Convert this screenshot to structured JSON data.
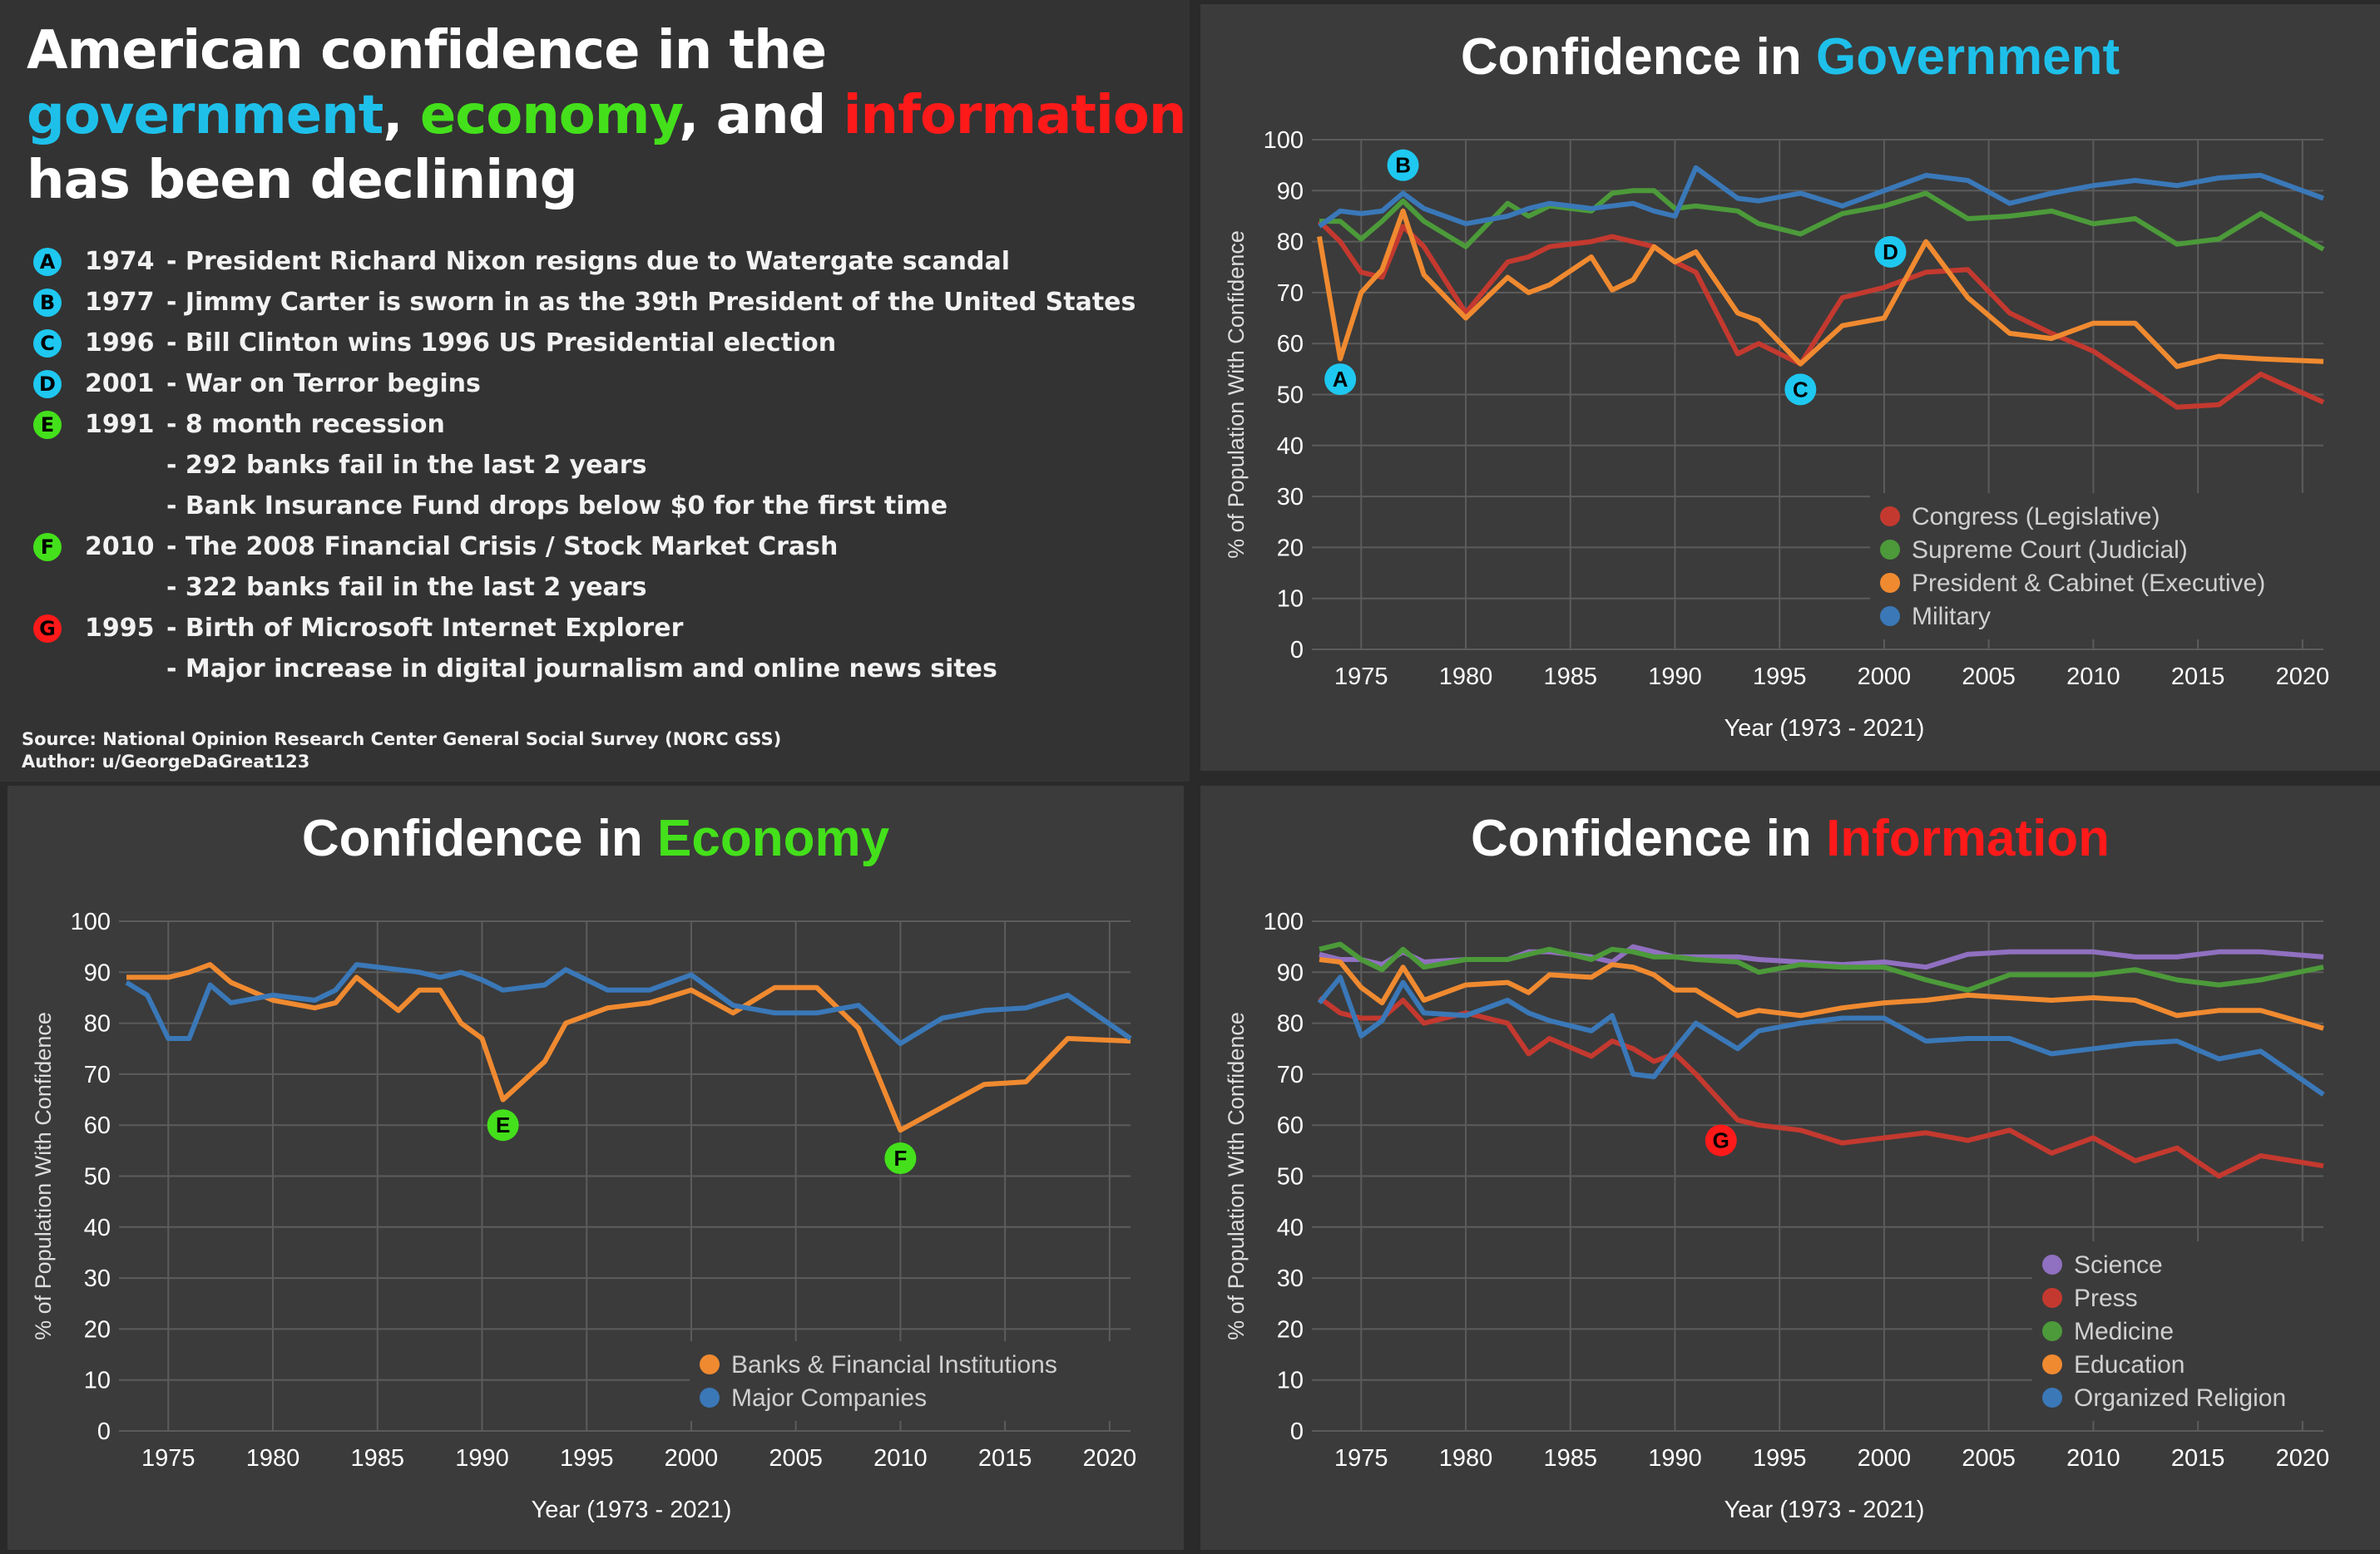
{
  "headline": {
    "line1": "American confidence in the",
    "gov": "government",
    "sep1": ", ",
    "eco": "economy",
    "sep2": ", and ",
    "inf": "information",
    "line3": "has been declining"
  },
  "events": [
    {
      "badge": "A",
      "color": "#1ec8f0",
      "year": "1974",
      "text": "- President Richard Nixon resigns due to Watergate scandal"
    },
    {
      "badge": "B",
      "color": "#1ec8f0",
      "year": "1977",
      "text": "- Jimmy Carter is sworn in as the 39th President of the United States"
    },
    {
      "badge": "C",
      "color": "#1ec8f0",
      "year": "1996",
      "text": "- Bill Clinton wins 1996 US Presidential election"
    },
    {
      "badge": "D",
      "color": "#1ec8f0",
      "year": "2001",
      "text": "- War on Terror begins"
    },
    {
      "badge": "E",
      "color": "#44e01b",
      "year": "1991",
      "text": "- 8 month recession"
    },
    {
      "badge": "",
      "color": "",
      "year": "",
      "text": "- 292 banks fail in the last 2 years"
    },
    {
      "badge": "",
      "color": "",
      "year": "",
      "text": "- Bank Insurance Fund drops below $0 for the first time"
    },
    {
      "badge": "F",
      "color": "#44e01b",
      "year": "2010",
      "text": "- The 2008 Financial Crisis / Stock Market Crash"
    },
    {
      "badge": "",
      "color": "",
      "year": "",
      "text": "- 322 banks fail in the last 2 years"
    },
    {
      "badge": "G",
      "color": "#ff1a1a",
      "year": "1995",
      "text": "- Birth of Microsoft Internet Explorer"
    },
    {
      "badge": "",
      "color": "",
      "year": "",
      "text": "- Major increase in digital journalism and online news sites"
    }
  ],
  "source": "Source: National Opinion Research Center General Social Survey (NORC GSS)",
  "author": "Author: u/GeorgeDaGreat123",
  "chart_data": [
    {
      "id": "gov",
      "type": "line",
      "title_prefix": "Confidence in ",
      "title_accent": "Government",
      "accent_color": "#1ec0ea",
      "xlabel": "Year (1973 - 2021)",
      "ylabel": "% of Population With Confidence",
      "xlim": [
        1973,
        2021
      ],
      "ylim": [
        0,
        100
      ],
      "xticks": [
        1975,
        1980,
        1985,
        1990,
        1995,
        2000,
        2005,
        2010,
        2015,
        2020
      ],
      "yticks": [
        0,
        10,
        20,
        30,
        40,
        50,
        60,
        70,
        80,
        90,
        100
      ],
      "grid": true,
      "legend": "bottom-right",
      "x": [
        1973,
        1974,
        1975,
        1976,
        1977,
        1978,
        1980,
        1982,
        1983,
        1984,
        1986,
        1987,
        1988,
        1989,
        1990,
        1991,
        1993,
        1994,
        1996,
        1998,
        2000,
        2002,
        2004,
        2006,
        2008,
        2010,
        2012,
        2014,
        2016,
        2018,
        2021
      ],
      "series": [
        {
          "name": "Congress (Legislative)",
          "color": "#c4392f",
          "values": [
            84,
            80,
            74,
            73,
            83,
            79,
            66,
            76,
            77,
            79,
            80,
            81,
            80,
            79,
            76,
            74,
            58,
            60,
            56,
            69,
            71,
            74,
            74.5,
            66,
            62,
            58.5,
            53,
            47.5,
            48,
            54,
            48.5
          ]
        },
        {
          "name": "Supreme Court (Judicial)",
          "color": "#4c9a3a",
          "values": [
            84,
            84,
            80.5,
            84,
            88,
            84,
            79,
            87.5,
            85,
            87,
            86,
            89.5,
            90,
            90,
            86.5,
            87,
            86,
            83.5,
            81.5,
            85.5,
            87,
            89.5,
            84.5,
            85,
            86,
            83.5,
            84.5,
            79.5,
            80.5,
            85.5,
            78.5
          ]
        },
        {
          "name": "President & Cabinet (Executive)",
          "color": "#f08a30",
          "values": [
            81,
            57,
            70,
            74.5,
            86,
            73.5,
            65,
            73,
            70,
            71.5,
            77,
            70.5,
            72.5,
            79,
            76,
            78,
            66,
            64.5,
            56,
            63.5,
            65,
            80,
            69,
            62,
            61,
            64,
            64,
            55.5,
            57.5,
            57,
            56.5
          ]
        },
        {
          "name": "Military",
          "color": "#3a78b8",
          "values": [
            83,
            86,
            85.5,
            86,
            89.5,
            86.5,
            83.5,
            85,
            86.5,
            87.5,
            86.5,
            87,
            87.5,
            86,
            85,
            94.5,
            88.5,
            88,
            89.5,
            87,
            90,
            93,
            92,
            87.5,
            89.5,
            91,
            92,
            91,
            92.5,
            93,
            88.5
          ]
        }
      ],
      "annotations": [
        {
          "label": "A",
          "x": 1974,
          "y": 53,
          "color": "#1ec8f0"
        },
        {
          "label": "B",
          "x": 1977,
          "y": 95,
          "color": "#1ec8f0"
        },
        {
          "label": "C",
          "x": 1996,
          "y": 51,
          "color": "#1ec8f0"
        },
        {
          "label": "D",
          "x": 2000.3,
          "y": 78,
          "color": "#1ec8f0"
        }
      ]
    },
    {
      "id": "eco",
      "type": "line",
      "title_prefix": "Confidence in ",
      "title_accent": "Economy",
      "accent_color": "#44e01b",
      "xlabel": "Year (1973 - 2021)",
      "ylabel": "% of Population With Confidence",
      "xlim": [
        1973,
        2021
      ],
      "ylim": [
        0,
        100
      ],
      "xticks": [
        1975,
        1980,
        1985,
        1990,
        1995,
        2000,
        2005,
        2010,
        2015,
        2020
      ],
      "yticks": [
        0,
        10,
        20,
        30,
        40,
        50,
        60,
        70,
        80,
        90,
        100
      ],
      "grid": true,
      "legend": "bottom-right",
      "x": [
        1973,
        1974,
        1975,
        1976,
        1977,
        1978,
        1980,
        1982,
        1983,
        1984,
        1986,
        1987,
        1988,
        1989,
        1990,
        1991,
        1993,
        1994,
        1996,
        1998,
        2000,
        2002,
        2004,
        2006,
        2008,
        2010,
        2012,
        2014,
        2016,
        2018,
        2021
      ],
      "series": [
        {
          "name": "Banks & Financial Institutions",
          "color": "#f08a30",
          "values": [
            89,
            89,
            89,
            90,
            91.5,
            88,
            84.5,
            83,
            84,
            89,
            82.5,
            86.5,
            86.5,
            80,
            77,
            65,
            72.5,
            80,
            83,
            84,
            86.5,
            82,
            87,
            87,
            79,
            59,
            63.5,
            68,
            68.5,
            77,
            76.5
          ]
        },
        {
          "name": "Major Companies",
          "color": "#3a78b8",
          "values": [
            88,
            85.5,
            77,
            77,
            87.5,
            84,
            85.5,
            84.5,
            86.5,
            91.5,
            90.5,
            90,
            89,
            90,
            88.5,
            86.5,
            87.5,
            90.5,
            86.5,
            86.5,
            89.5,
            83.5,
            82,
            82,
            83.5,
            76,
            81,
            82.5,
            83,
            85.5,
            77
          ]
        }
      ],
      "annotations": [
        {
          "label": "E",
          "x": 1991,
          "y": 60,
          "color": "#44e01b"
        },
        {
          "label": "F",
          "x": 2010,
          "y": 53.5,
          "color": "#44e01b"
        }
      ]
    },
    {
      "id": "inf",
      "type": "line",
      "title_prefix": "Confidence in ",
      "title_accent": "Information",
      "accent_color": "#ff1a1a",
      "xlabel": "Year (1973 - 2021)",
      "ylabel": "% of Population With Confidence",
      "xlim": [
        1973,
        2021
      ],
      "ylim": [
        0,
        100
      ],
      "xticks": [
        1975,
        1980,
        1985,
        1990,
        1995,
        2000,
        2005,
        2010,
        2015,
        2020
      ],
      "yticks": [
        0,
        10,
        20,
        30,
        40,
        50,
        60,
        70,
        80,
        90,
        100
      ],
      "grid": true,
      "legend": "bottom-right",
      "x": [
        1973,
        1974,
        1975,
        1976,
        1977,
        1978,
        1980,
        1982,
        1983,
        1984,
        1986,
        1987,
        1988,
        1989,
        1990,
        1991,
        1993,
        1994,
        1996,
        1998,
        2000,
        2002,
        2004,
        2006,
        2008,
        2010,
        2012,
        2014,
        2016,
        2018,
        2021
      ],
      "series": [
        {
          "name": "Science",
          "color": "#9070c0",
          "values": [
            93.5,
            92.5,
            92.5,
            91.5,
            94,
            92,
            92.5,
            92.5,
            94,
            94,
            93,
            92,
            95,
            94,
            93,
            93,
            93,
            92.5,
            92,
            91.5,
            92,
            91,
            93.5,
            94,
            94,
            94,
            93,
            93,
            94,
            94,
            93
          ]
        },
        {
          "name": "Press",
          "color": "#c4392f",
          "values": [
            85,
            82,
            81,
            81,
            84.5,
            80,
            82,
            80,
            74,
            77,
            73.5,
            76.5,
            75,
            72.5,
            74,
            70,
            61,
            60,
            59,
            56.5,
            57.5,
            58.5,
            57,
            59,
            54.5,
            57.5,
            53,
            55.5,
            50,
            54,
            52
          ]
        },
        {
          "name": "Medicine",
          "color": "#4c9a3a",
          "values": [
            94.5,
            95.5,
            92.5,
            90.5,
            94.5,
            91,
            92.5,
            92.5,
            93.5,
            94.5,
            92.5,
            94.5,
            94,
            93,
            93,
            92.5,
            92,
            90,
            91.5,
            91,
            91,
            88.5,
            86.5,
            89.5,
            89.5,
            89.5,
            90.5,
            88.5,
            87.5,
            88.5,
            91
          ]
        },
        {
          "name": "Education",
          "color": "#f08a30",
          "values": [
            92.5,
            92,
            87,
            84,
            91,
            84.5,
            87.5,
            88,
            86,
            89.5,
            89,
            91.5,
            91,
            89.5,
            86.5,
            86.5,
            81.5,
            82.5,
            81.5,
            83,
            84,
            84.5,
            85.5,
            85,
            84.5,
            85,
            84.5,
            81.5,
            82.5,
            82.5,
            79
          ]
        },
        {
          "name": "Organized Religion",
          "color": "#3a78b8",
          "values": [
            84,
            89,
            77.5,
            80.5,
            88,
            82,
            81.5,
            84.5,
            82,
            80.5,
            78.5,
            81.5,
            70,
            69.5,
            75,
            80,
            75,
            78.5,
            80,
            81,
            81,
            76.5,
            77,
            77,
            74,
            75,
            76,
            76.5,
            73,
            74.5,
            66
          ]
        }
      ],
      "annotations": [
        {
          "label": "G",
          "x": 1992.2,
          "y": 57,
          "color": "#ff1a1a"
        }
      ]
    }
  ]
}
